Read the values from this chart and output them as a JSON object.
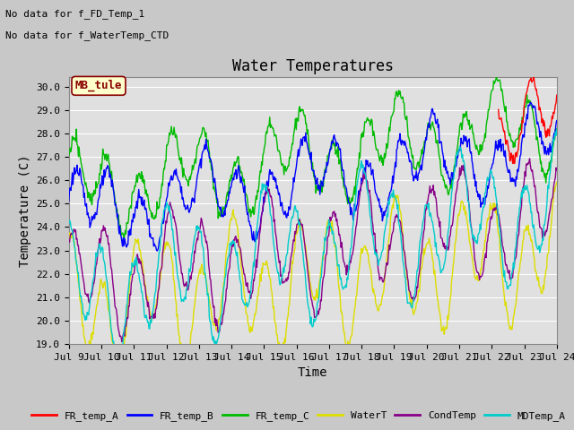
{
  "title": "Water Temperatures",
  "ylabel": "Temperature (C)",
  "xlabel": "Time",
  "text_top_left_1": "No data for f_FD_Temp_1",
  "text_top_left_2": "No data for f_WaterTemp_CTD",
  "annotation_box": "MB_tule",
  "ylim": [
    19.0,
    30.4
  ],
  "yticks": [
    19.0,
    20.0,
    21.0,
    22.0,
    23.0,
    24.0,
    25.0,
    26.0,
    27.0,
    28.0,
    29.0,
    30.0
  ],
  "xtick_labels": [
    "Jul 9",
    "Jul 10",
    "Jul 11",
    "Jul 12",
    "Jul 13",
    "Jul 14",
    "Jul 15",
    "Jul 16",
    "Jul 17",
    "Jul 18",
    "Jul 19",
    "Jul 20",
    "Jul 21",
    "Jul 22",
    "Jul 23",
    "Jul 24"
  ],
  "series_colors": {
    "FR_temp_A": "#ff0000",
    "FR_temp_B": "#0000ff",
    "FR_temp_C": "#00bb00",
    "WaterT": "#dddd00",
    "CondTemp": "#880088",
    "MDTemp_A": "#00cccc"
  },
  "fig_bg_color": "#c8c8c8",
  "plot_bg_color": "#e0e0e0",
  "grid_color": "#ffffff",
  "title_fontsize": 12,
  "axis_fontsize": 10,
  "tick_fontsize": 8
}
